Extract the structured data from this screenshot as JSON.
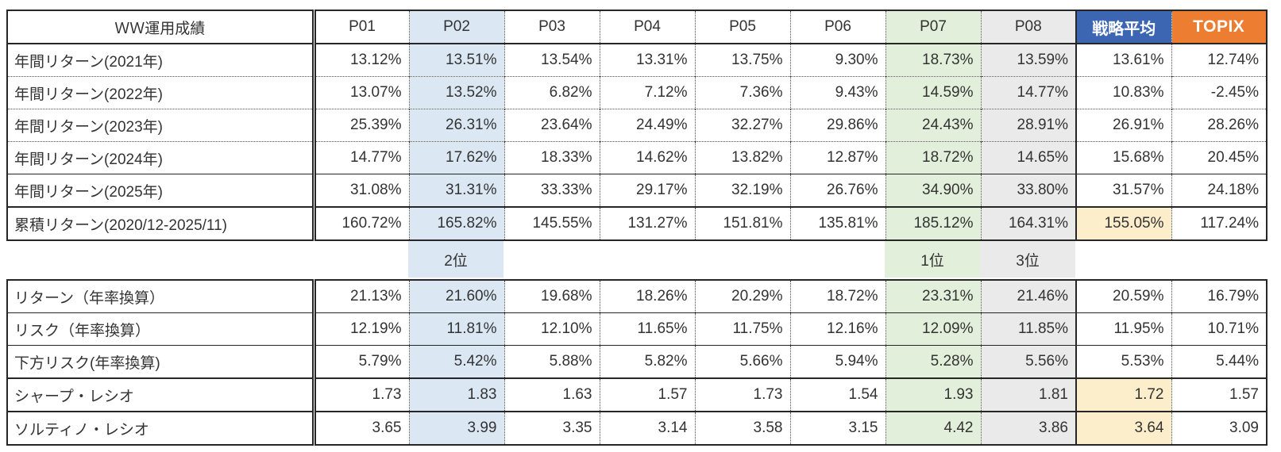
{
  "table": {
    "title": "ＷＷ運用成績",
    "columns": [
      "P01",
      "P02",
      "P03",
      "P04",
      "P05",
      "P06",
      "P07",
      "P08",
      "戦略平均",
      "TOPIX"
    ],
    "colors": {
      "p02_highlight": "#DBE8F4",
      "p07_highlight": "#E2EFDA",
      "p08_highlight": "#EAEAEA",
      "strategy_header_bg": "#3C66B1",
      "topix_header_bg": "#ED7D31",
      "strategy_highlight": "#FCEDCB",
      "border_dark": "#262626"
    },
    "annual_rows": [
      {
        "label": "年間リターン(2021年)",
        "values": [
          "13.12%",
          "13.51%",
          "13.54%",
          "13.31%",
          "13.75%",
          "9.30%",
          "18.73%",
          "13.59%",
          "13.61%",
          "12.74%"
        ]
      },
      {
        "label": "年間リターン(2022年)",
        "values": [
          "13.07%",
          "13.52%",
          "6.82%",
          "7.12%",
          "7.36%",
          "9.43%",
          "14.59%",
          "14.77%",
          "10.83%",
          "-2.45%"
        ]
      },
      {
        "label": "年間リターン(2023年)",
        "values": [
          "25.39%",
          "26.31%",
          "23.64%",
          "24.49%",
          "32.27%",
          "29.86%",
          "24.43%",
          "28.91%",
          "26.91%",
          "28.26%"
        ]
      },
      {
        "label": "年間リターン(2024年)",
        "values": [
          "14.77%",
          "17.62%",
          "18.33%",
          "14.62%",
          "13.82%",
          "12.87%",
          "18.72%",
          "14.65%",
          "15.68%",
          "20.45%"
        ]
      },
      {
        "label": "年間リターン(2025年)",
        "values": [
          "31.08%",
          "31.31%",
          "33.33%",
          "29.17%",
          "32.19%",
          "26.76%",
          "34.90%",
          "33.80%",
          "31.57%",
          "24.18%"
        ]
      }
    ],
    "cumulative_row": {
      "label": "累積リターン(2020/12-2025/11)",
      "values": [
        "160.72%",
        "165.82%",
        "145.55%",
        "131.27%",
        "151.81%",
        "135.81%",
        "185.12%",
        "164.31%",
        "155.05%",
        "117.24%"
      ],
      "strategy_highlight": true
    },
    "rank_row": {
      "p02": "2位",
      "p07": "1位",
      "p08": "3位"
    },
    "metric_rows": [
      {
        "label": "リターン（年率換算）",
        "values": [
          "21.13%",
          "21.60%",
          "19.68%",
          "18.26%",
          "20.29%",
          "18.72%",
          "23.31%",
          "21.46%",
          "20.59%",
          "16.79%"
        ],
        "strategy_highlight": false
      },
      {
        "label": "リスク（年率換算）",
        "values": [
          "12.19%",
          "11.81%",
          "12.10%",
          "11.65%",
          "11.75%",
          "12.16%",
          "12.09%",
          "11.85%",
          "11.95%",
          "10.71%"
        ],
        "strategy_highlight": false
      },
      {
        "label": "下方リスク(年率換算)",
        "values": [
          "5.79%",
          "5.42%",
          "5.88%",
          "5.82%",
          "5.66%",
          "5.94%",
          "5.28%",
          "5.56%",
          "5.53%",
          "5.44%"
        ],
        "strategy_highlight": false
      },
      {
        "label": "シャープ・レシオ",
        "values": [
          "1.73",
          "1.83",
          "1.63",
          "1.57",
          "1.73",
          "1.54",
          "1.93",
          "1.81",
          "1.72",
          "1.57"
        ],
        "strategy_highlight": true
      },
      {
        "label": "ソルティノ・レシオ",
        "values": [
          "3.65",
          "3.99",
          "3.35",
          "3.14",
          "3.58",
          "3.15",
          "4.42",
          "3.86",
          "3.64",
          "3.09"
        ],
        "strategy_highlight": true
      }
    ]
  }
}
